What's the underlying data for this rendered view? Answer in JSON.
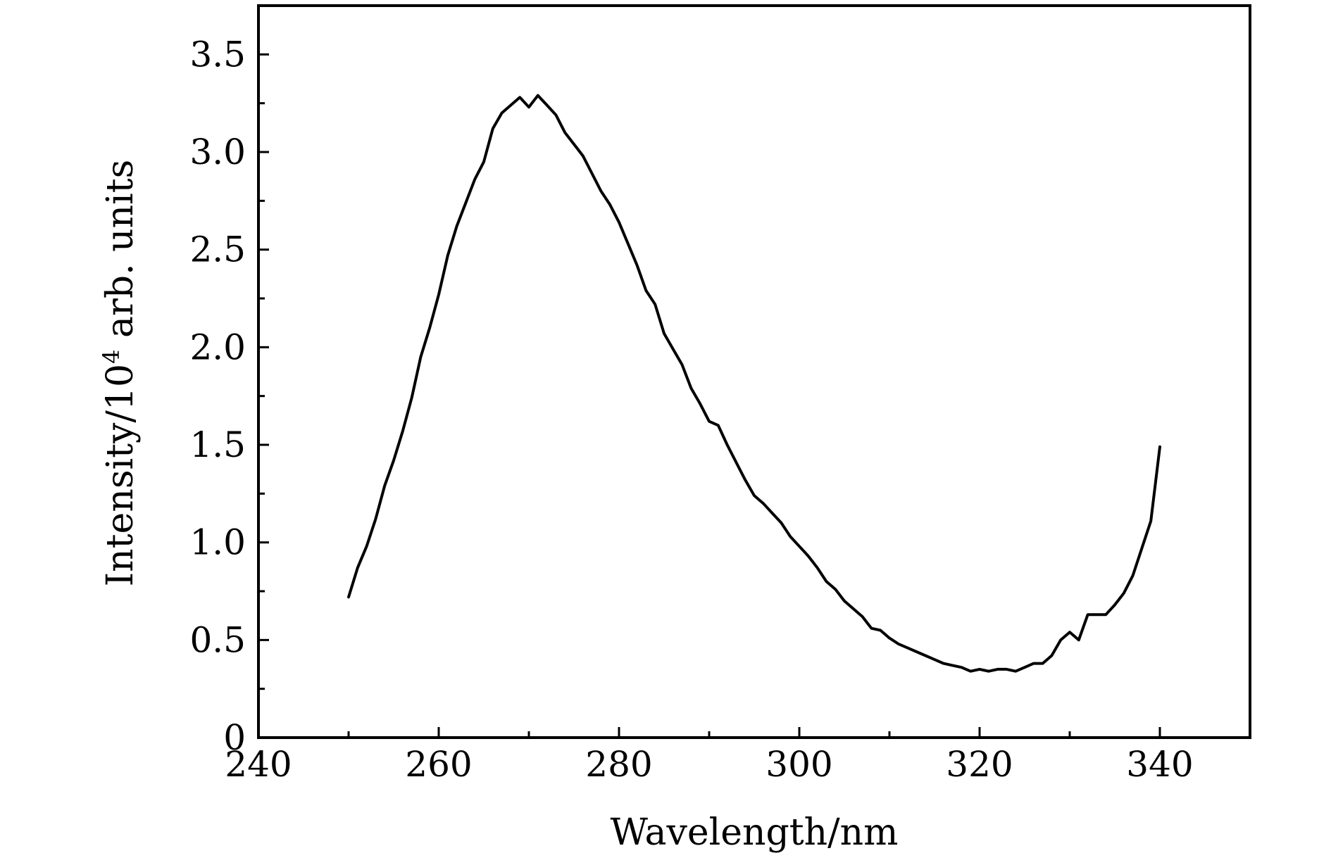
{
  "chart_data": {
    "type": "line",
    "title": "",
    "xlabel": "Wavelength/nm",
    "ylabel_prefix": "Intensity/10",
    "ylabel_superscript": "4",
    "ylabel_suffix": " arb. units",
    "xlim": [
      240,
      350
    ],
    "ylim": [
      0,
      3.75
    ],
    "x_ticks": [
      240,
      260,
      280,
      300,
      320,
      340
    ],
    "x_tick_labels": [
      "240",
      "260",
      "280",
      "300",
      "320",
      "340"
    ],
    "y_ticks": [
      0,
      0.5,
      1.0,
      1.5,
      2.0,
      2.5,
      3.0,
      3.5
    ],
    "y_tick_labels": [
      "0",
      "0.5",
      "1.0",
      "1.5",
      "2.0",
      "2.5",
      "3.0",
      "3.5"
    ],
    "grid": false,
    "line_color": "#000000",
    "series": [
      {
        "x": [
          250,
          251,
          252,
          253,
          254,
          255,
          256,
          257,
          258,
          259,
          260,
          261,
          262,
          263,
          264,
          265,
          266,
          267,
          268,
          269,
          270,
          271,
          272,
          273,
          274,
          275,
          276,
          277,
          278,
          279,
          280,
          281,
          282,
          283,
          284,
          285,
          286,
          287,
          288,
          289,
          290,
          291,
          292,
          293,
          294,
          295,
          296,
          297,
          298,
          299,
          300,
          301,
          302,
          303,
          304,
          305,
          306,
          307,
          308,
          309,
          310,
          311,
          312,
          313,
          314,
          315,
          316,
          317,
          318,
          319,
          320,
          321,
          322,
          323,
          324,
          325,
          326,
          327,
          328,
          329,
          330,
          331,
          332,
          333,
          334,
          335,
          336,
          337,
          338,
          339,
          340
        ],
        "y": [
          0.72,
          0.87,
          0.98,
          1.12,
          1.29,
          1.42,
          1.57,
          1.74,
          1.95,
          2.1,
          2.27,
          2.47,
          2.62,
          2.74,
          2.86,
          2.95,
          3.12,
          3.2,
          3.24,
          3.28,
          3.23,
          3.29,
          3.24,
          3.19,
          3.1,
          3.04,
          2.98,
          2.89,
          2.8,
          2.73,
          2.64,
          2.53,
          2.42,
          2.29,
          2.22,
          2.07,
          1.99,
          1.91,
          1.79,
          1.71,
          1.62,
          1.6,
          1.5,
          1.41,
          1.32,
          1.24,
          1.2,
          1.15,
          1.1,
          1.03,
          0.98,
          0.93,
          0.87,
          0.8,
          0.76,
          0.7,
          0.66,
          0.62,
          0.56,
          0.55,
          0.51,
          0.48,
          0.46,
          0.44,
          0.42,
          0.4,
          0.38,
          0.37,
          0.36,
          0.34,
          0.35,
          0.34,
          0.35,
          0.35,
          0.34,
          0.36,
          0.38,
          0.38,
          0.42,
          0.5,
          0.54,
          0.5,
          0.63,
          0.63,
          0.63,
          0.68,
          0.74,
          0.83,
          0.97,
          1.11,
          1.49
        ]
      }
    ]
  }
}
